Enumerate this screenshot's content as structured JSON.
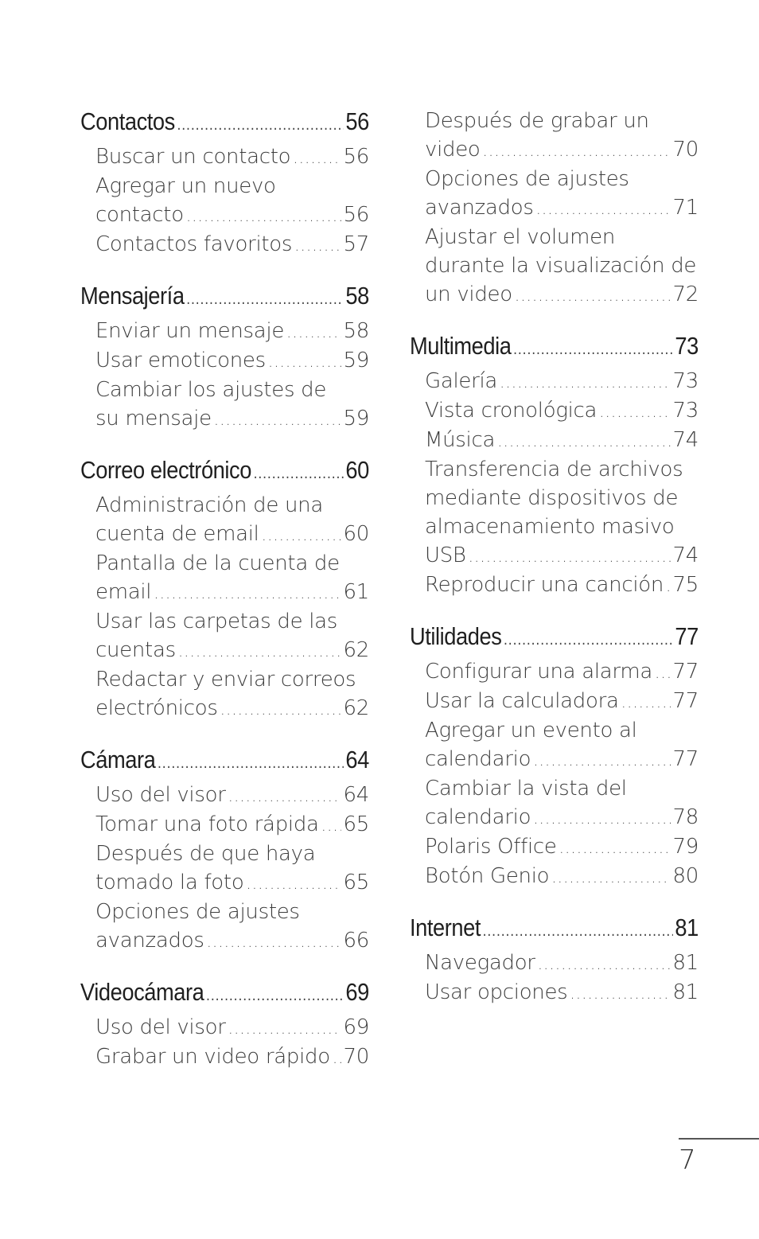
{
  "left_column": [
    {
      "title": "Contactos",
      "page": "56",
      "entries": [
        {
          "lines": [
            "Buscar un contacto"
          ],
          "page": "56"
        },
        {
          "lines": [
            "Agregar un nuevo",
            "contacto"
          ],
          "page": "56"
        },
        {
          "lines": [
            "Contactos favoritos"
          ],
          "page": "57"
        }
      ]
    },
    {
      "title": "Mensajería",
      "page": "58",
      "entries": [
        {
          "lines": [
            "Enviar un mensaje"
          ],
          "page": "58"
        },
        {
          "lines": [
            "Usar emoticones"
          ],
          "page": "59"
        },
        {
          "lines": [
            "Cambiar los ajustes de",
            "su mensaje"
          ],
          "page": "59"
        }
      ]
    },
    {
      "title": "Correo electrónico",
      "page": "60",
      "entries": [
        {
          "lines": [
            "Administración de una",
            "cuenta de email"
          ],
          "page": "60"
        },
        {
          "lines": [
            "Pantalla de la cuenta de",
            "email"
          ],
          "page": "61"
        },
        {
          "lines": [
            "Usar las carpetas de las",
            "cuentas"
          ],
          "page": "62"
        },
        {
          "lines": [
            "Redactar y enviar correos",
            "electrónicos"
          ],
          "page": "62"
        }
      ]
    },
    {
      "title": "Cámara",
      "page": "64",
      "entries": [
        {
          "lines": [
            "Uso del visor"
          ],
          "page": "64"
        },
        {
          "lines": [
            "Tomar una foto rápida"
          ],
          "page": "65"
        },
        {
          "lines": [
            "Después de que haya",
            "tomado la foto"
          ],
          "page": "65"
        },
        {
          "lines": [
            "Opciones de ajustes",
            "avanzados"
          ],
          "page": "66"
        }
      ]
    },
    {
      "title": "Videocámara",
      "page": "69",
      "entries": [
        {
          "lines": [
            "Uso del visor"
          ],
          "page": "69"
        },
        {
          "lines": [
            "Grabar un video rápido"
          ],
          "page": "70"
        }
      ]
    }
  ],
  "right_column": [
    {
      "title": "",
      "page": "",
      "entries": [
        {
          "lines": [
            "Después de grabar un",
            "video"
          ],
          "page": "70"
        },
        {
          "lines": [
            "Opciones de ajustes",
            "avanzados"
          ],
          "page": "71"
        },
        {
          "lines": [
            "Ajustar el volumen",
            "durante la visualización de",
            "un video"
          ],
          "page": "72"
        }
      ]
    },
    {
      "title": "Multimedia",
      "page": "73",
      "entries": [
        {
          "lines": [
            "Galería"
          ],
          "page": "73"
        },
        {
          "lines": [
            "Vista cronológica"
          ],
          "page": "73"
        },
        {
          "lines": [
            "Música"
          ],
          "page": "74"
        },
        {
          "lines": [
            "Transferencia de archivos",
            "mediante dispositivos de",
            "almacenamiento masivo",
            "USB"
          ],
          "page": "74"
        },
        {
          "lines": [
            "Reproducir una canción"
          ],
          "page": "75"
        }
      ]
    },
    {
      "title": "Utilidades",
      "page": "77",
      "entries": [
        {
          "lines": [
            "Configurar una alarma"
          ],
          "page": "77"
        },
        {
          "lines": [
            "Usar la calculadora"
          ],
          "page": "77"
        },
        {
          "lines": [
            "Agregar un evento al",
            "calendario"
          ],
          "page": "77"
        },
        {
          "lines": [
            "Cambiar la vista del",
            "calendario"
          ],
          "page": "78"
        },
        {
          "lines": [
            "Polaris Office"
          ],
          "page": "79"
        },
        {
          "lines": [
            "Botón Genio"
          ],
          "page": "80"
        }
      ]
    },
    {
      "title": "Internet",
      "page": "81",
      "entries": [
        {
          "lines": [
            "Navegador"
          ],
          "page": "81"
        },
        {
          "lines": [
            "Usar opciones"
          ],
          "page": "81"
        }
      ]
    }
  ],
  "page_number": "7"
}
